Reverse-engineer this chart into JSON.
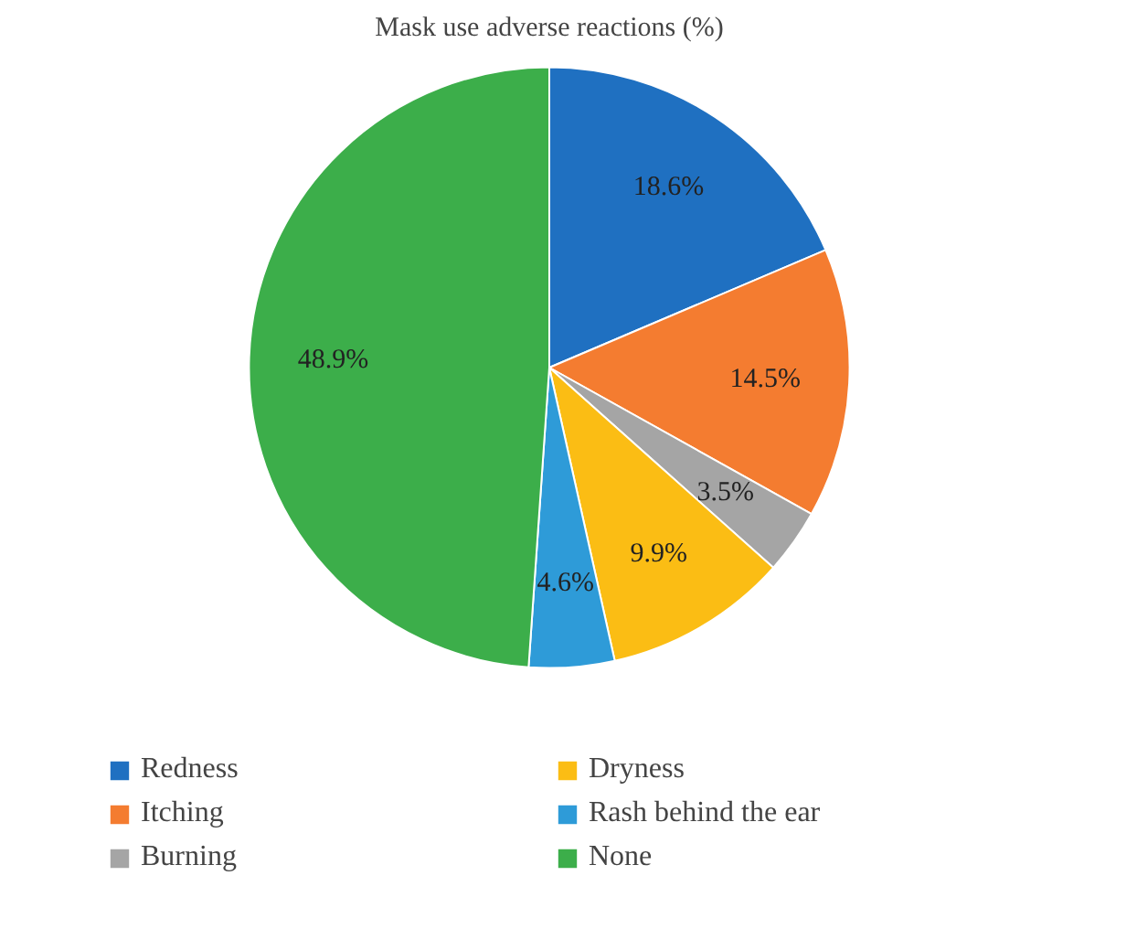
{
  "chart_data": {
    "type": "pie",
    "title": "Mask use adverse reactions (%)",
    "categories": [
      "Redness",
      "Itching",
      "Burning",
      "Dryness",
      "Rash behind the ear",
      "None"
    ],
    "values": [
      18.6,
      14.5,
      3.5,
      9.9,
      4.6,
      48.9
    ],
    "colors": [
      "#1f70c1",
      "#f47c30",
      "#a5a5a5",
      "#fbbd14",
      "#2e9bd8",
      "#3cae4a"
    ],
    "value_labels": [
      "18.6%",
      "14.5%",
      "3.5%",
      "9.9%",
      "4.6%",
      "48.9%"
    ],
    "legend": "bottom"
  }
}
